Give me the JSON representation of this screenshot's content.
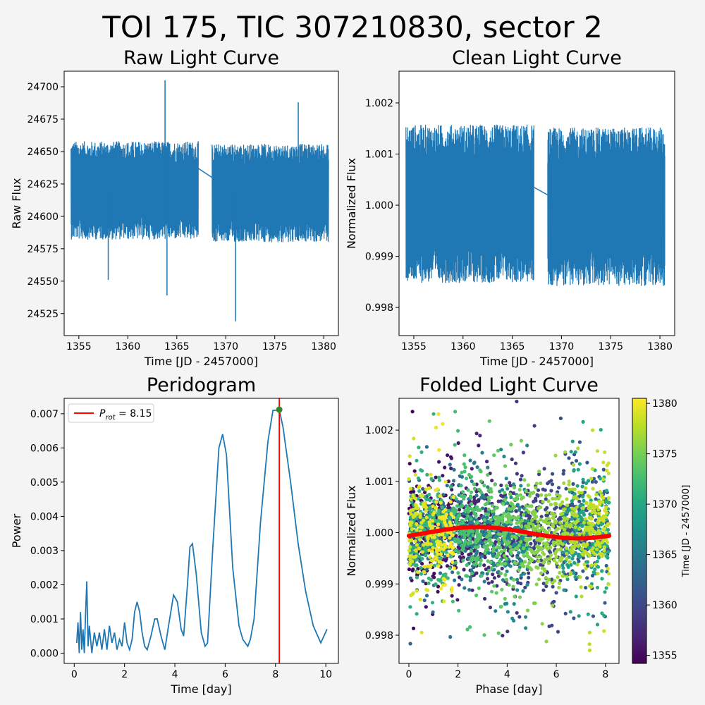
{
  "figure_title": "TOI 175, TIC 307210830, sector 2",
  "chart_data": [
    {
      "id": "raw",
      "type": "line",
      "title": "Raw Light Curve",
      "xlabel": "Time [JD - 2457000]",
      "ylabel": "Raw Flux",
      "xlim": [
        1353.5,
        1381.5
      ],
      "ylim": [
        24508,
        24712
      ],
      "xticks": [
        1355,
        1360,
        1365,
        1370,
        1375,
        1380
      ],
      "yticks": [
        24525,
        24550,
        24575,
        24600,
        24625,
        24650,
        24675,
        24700
      ],
      "segments": [
        {
          "x_range": [
            1354.2,
            1367.2
          ],
          "center": 24620,
          "spread": 38
        },
        {
          "x_range": [
            1368.6,
            1380.5
          ],
          "center": 24618,
          "spread": 38
        }
      ],
      "gap_line": {
        "x": [
          1367.2,
          1368.6
        ],
        "y": [
          24637,
          24630
        ]
      },
      "spikes": [
        {
          "x": 1363.8,
          "y": 24705
        },
        {
          "x": 1364.0,
          "y": 24539
        },
        {
          "x": 1371.0,
          "y": 24519
        },
        {
          "x": 1377.4,
          "y": 24688
        },
        {
          "x": 1358.0,
          "y": 24551
        }
      ],
      "color": "#1f77b4"
    },
    {
      "id": "clean",
      "type": "line",
      "title": "Clean Light Curve",
      "xlabel": "Time [JD - 2457000]",
      "ylabel": "Normalized Flux",
      "xlim": [
        1353.5,
        1381.5
      ],
      "ylim": [
        0.99745,
        1.00262
      ],
      "xticks": [
        1355,
        1360,
        1365,
        1370,
        1375,
        1380
      ],
      "yticks": [
        0.998,
        0.999,
        1.0,
        1.001,
        1.002
      ],
      "segments": [
        {
          "x_range": [
            1354.2,
            1367.2
          ],
          "center": 1.00003,
          "spread": 0.00155
        },
        {
          "x_range": [
            1368.6,
            1380.5
          ],
          "center": 0.99997,
          "spread": 0.00155
        }
      ],
      "gap_line": {
        "x": [
          1367.2,
          1368.6
        ],
        "y": [
          1.00035,
          1.0002
        ]
      },
      "color": "#1f77b4"
    },
    {
      "id": "periodogram",
      "type": "line",
      "title": "Peridogram",
      "xlabel": "Time [day]",
      "ylabel": "Power",
      "xlim": [
        -0.4,
        10.5
      ],
      "ylim": [
        -0.0003,
        0.00745
      ],
      "xticks": [
        0,
        2,
        4,
        6,
        8,
        10
      ],
      "yticks": [
        0.0,
        0.001,
        0.002,
        0.003,
        0.004,
        0.005,
        0.006,
        0.007
      ],
      "curve": [
        [
          0.1,
          0.0003
        ],
        [
          0.15,
          0.0009
        ],
        [
          0.2,
          0.0
        ],
        [
          0.25,
          0.0012
        ],
        [
          0.3,
          0.0001
        ],
        [
          0.35,
          0.0007
        ],
        [
          0.4,
          0.0
        ],
        [
          0.45,
          0.0011
        ],
        [
          0.5,
          0.0021
        ],
        [
          0.55,
          0.0002
        ],
        [
          0.6,
          0.0008
        ],
        [
          0.7,
          0.0
        ],
        [
          0.8,
          0.0006
        ],
        [
          0.9,
          0.0002
        ],
        [
          1.0,
          0.0006
        ],
        [
          1.1,
          0.0001
        ],
        [
          1.2,
          0.0007
        ],
        [
          1.3,
          0.0001
        ],
        [
          1.4,
          0.0008
        ],
        [
          1.5,
          0.0003
        ],
        [
          1.6,
          0.0006
        ],
        [
          1.7,
          0.0001
        ],
        [
          1.8,
          0.0004
        ],
        [
          1.9,
          0.0002
        ],
        [
          2.0,
          0.0009
        ],
        [
          2.1,
          0.0003
        ],
        [
          2.2,
          0.0001
        ],
        [
          2.3,
          0.0004
        ],
        [
          2.4,
          0.0012
        ],
        [
          2.5,
          0.0015
        ],
        [
          2.6,
          0.0012
        ],
        [
          2.7,
          0.0006
        ],
        [
          2.8,
          0.0002
        ],
        [
          2.9,
          0.0001
        ],
        [
          3.05,
          0.0005
        ],
        [
          3.2,
          0.001
        ],
        [
          3.3,
          0.001
        ],
        [
          3.45,
          0.0005
        ],
        [
          3.6,
          0.0001
        ],
        [
          3.75,
          0.0008
        ],
        [
          3.95,
          0.0017
        ],
        [
          4.1,
          0.0015
        ],
        [
          4.25,
          0.0007
        ],
        [
          4.35,
          0.0005
        ],
        [
          4.5,
          0.002
        ],
        [
          4.6,
          0.0031
        ],
        [
          4.7,
          0.0032
        ],
        [
          4.85,
          0.0023
        ],
        [
          5.05,
          0.0006
        ],
        [
          5.2,
          0.0002
        ],
        [
          5.3,
          0.0003
        ],
        [
          5.5,
          0.003
        ],
        [
          5.75,
          0.006
        ],
        [
          5.9,
          0.0064
        ],
        [
          6.05,
          0.0058
        ],
        [
          6.3,
          0.0025
        ],
        [
          6.55,
          0.0008
        ],
        [
          6.7,
          0.0004
        ],
        [
          6.9,
          0.0002
        ],
        [
          7.0,
          0.0004
        ],
        [
          7.15,
          0.001
        ],
        [
          7.4,
          0.0038
        ],
        [
          7.7,
          0.0062
        ],
        [
          7.9,
          0.0071
        ],
        [
          8.1,
          0.0071
        ],
        [
          8.15,
          0.00712
        ],
        [
          8.3,
          0.0066
        ],
        [
          8.6,
          0.005
        ],
        [
          8.9,
          0.0032
        ],
        [
          9.2,
          0.0018
        ],
        [
          9.5,
          0.0008
        ],
        [
          9.8,
          0.0003
        ],
        [
          10.05,
          0.0007
        ]
      ],
      "peak": {
        "x": 8.15,
        "y": 0.00712
      },
      "vline_x": 8.15,
      "legend": {
        "label_main": "P",
        "label_sub": "rot",
        "label_value": " = 8.15",
        "position": "upper-left"
      },
      "color": "#1f77b4",
      "vline_color": "#ff0000",
      "peak_color": "#2c8a2c"
    },
    {
      "id": "folded",
      "type": "scatter",
      "title": "Folded Light Curve",
      "xlabel": "Phase [day]",
      "ylabel": "Normalized Flux",
      "xlim": [
        -0.4,
        8.55
      ],
      "ylim": [
        0.99745,
        1.00262
      ],
      "xticks": [
        0,
        2,
        4,
        6,
        8
      ],
      "yticks": [
        0.998,
        0.999,
        1.0,
        1.001,
        1.002
      ],
      "phase_range": [
        0,
        8.15
      ],
      "model": {
        "mean": 1.0,
        "amplitude": 0.00011,
        "period": 8.15,
        "phase_offset": 2.8,
        "color": "#ff0000"
      },
      "colorbar": {
        "label": "Time [JD - 2457000]",
        "range": [
          1354.2,
          1380.5
        ],
        "ticks": [
          1355,
          1360,
          1365,
          1370,
          1375,
          1380
        ],
        "colormap": "viridis"
      }
    }
  ]
}
